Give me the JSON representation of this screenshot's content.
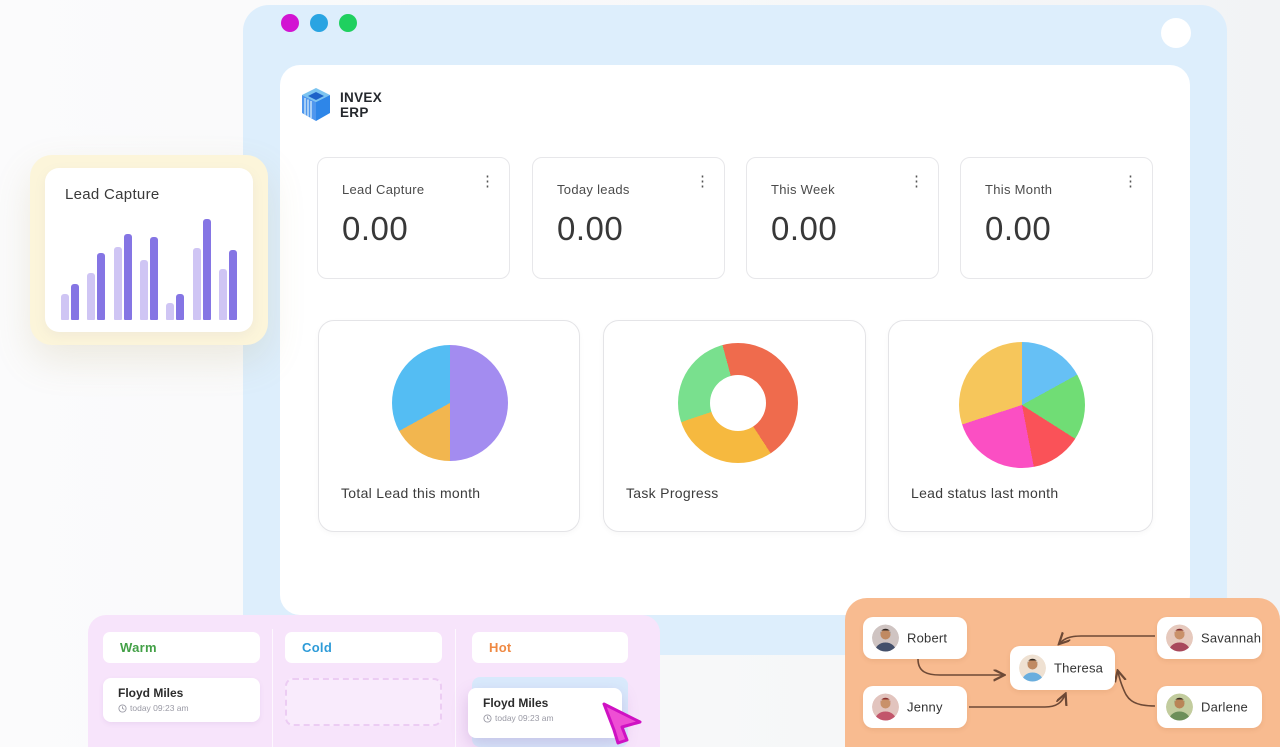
{
  "window": {
    "traffic_lights": [
      "#d214d2",
      "#29a4e2",
      "#1fd05f"
    ]
  },
  "brand": {
    "line1": "INVEX",
    "line2": "ERP"
  },
  "stat_cards": [
    {
      "label": "Lead Capture",
      "value": "0.00",
      "menu_icon": "⋮"
    },
    {
      "label": "Today leads",
      "value": "0.00",
      "menu_icon": "⋮"
    },
    {
      "label": "This Week",
      "value": "0.00",
      "menu_icon": "⋮"
    },
    {
      "label": "This Month",
      "value": "0.00",
      "menu_icon": "⋮"
    }
  ],
  "chart_data": [
    {
      "type": "bar",
      "title": "Lead Capture",
      "categories": [
        "1",
        "2",
        "3",
        "4",
        "5",
        "6",
        "7"
      ],
      "series": [
        {
          "name": "light",
          "values": [
            26,
            47,
            73,
            60,
            17,
            72,
            51
          ]
        },
        {
          "name": "dark",
          "values": [
            36,
            67,
            86,
            83,
            26,
            101,
            70
          ]
        }
      ],
      "colors": [
        "#cfc5f4",
        "#8575e4"
      ],
      "ylim": [
        0,
        105
      ],
      "grid": false,
      "legend": false
    },
    {
      "type": "pie",
      "title": "Total Lead this month",
      "start_angle": 0,
      "segments": [
        {
          "label": "segment-purple",
          "value": 50,
          "color": "#a38cf0"
        },
        {
          "label": "segment-yellow",
          "value": 17,
          "color": "#f2b64f"
        },
        {
          "label": "segment-blue",
          "value": 33,
          "color": "#54bdf3"
        }
      ]
    },
    {
      "type": "donut",
      "title": "Task Progress",
      "start_angle": -15,
      "hole": 0.53,
      "segments": [
        {
          "label": "segment-orange",
          "value": 45,
          "color": "#ef6b4d"
        },
        {
          "label": "segment-yellow",
          "value": 29,
          "color": "#f6b93f"
        },
        {
          "label": "segment-green",
          "value": 26,
          "color": "#79e08e"
        }
      ]
    },
    {
      "type": "pie",
      "title": "Lead status last month",
      "start_angle": 0,
      "segments": [
        {
          "label": "segment-blue",
          "value": 17,
          "color": "#66c0f5"
        },
        {
          "label": "segment-green",
          "value": 17,
          "color": "#70dd75"
        },
        {
          "label": "segment-red",
          "value": 13,
          "color": "#fa5258"
        },
        {
          "label": "segment-pink",
          "value": 23,
          "color": "#fb4fc3"
        },
        {
          "label": "segment-yellow",
          "value": 30,
          "color": "#f6c65b"
        }
      ]
    }
  ],
  "kanban": {
    "columns": [
      {
        "title": "Warm",
        "color": "#43a047",
        "card": {
          "name": "Floyd Miles",
          "time": "today 09:23 am"
        }
      },
      {
        "title": "Cold",
        "color": "#2d9bd8",
        "placeholder": true
      },
      {
        "title": "Hot",
        "color": "#ef8943",
        "card": {
          "name": "Floyd Miles",
          "time": "today 09:23 am"
        }
      }
    ]
  },
  "flow": {
    "nodes": [
      {
        "name": "Robert",
        "avatar": {
          "bg": "#cfc4c2",
          "hair": "#2e2420",
          "skin": "#c08a62",
          "shirt": "#44506b"
        }
      },
      {
        "name": "Savannah",
        "avatar": {
          "bg": "#e6c9bd",
          "hair": "#7e2a2e",
          "skin": "#c9916a",
          "shirt": "#a8485c"
        }
      },
      {
        "name": "Theresa",
        "avatar": {
          "bg": "#efe1d2",
          "hair": "#32281f",
          "skin": "#c08a62",
          "shirt": "#6aaede"
        }
      },
      {
        "name": "Jenny",
        "avatar": {
          "bg": "#e2c4be",
          "hair": "#8c2f2f",
          "skin": "#c9916a",
          "shirt": "#c2566b"
        }
      },
      {
        "name": "Darlene",
        "avatar": {
          "bg": "#c2cc9e",
          "hair": "#3a3026",
          "skin": "#b98557",
          "shirt": "#6d8f5a"
        }
      }
    ]
  }
}
